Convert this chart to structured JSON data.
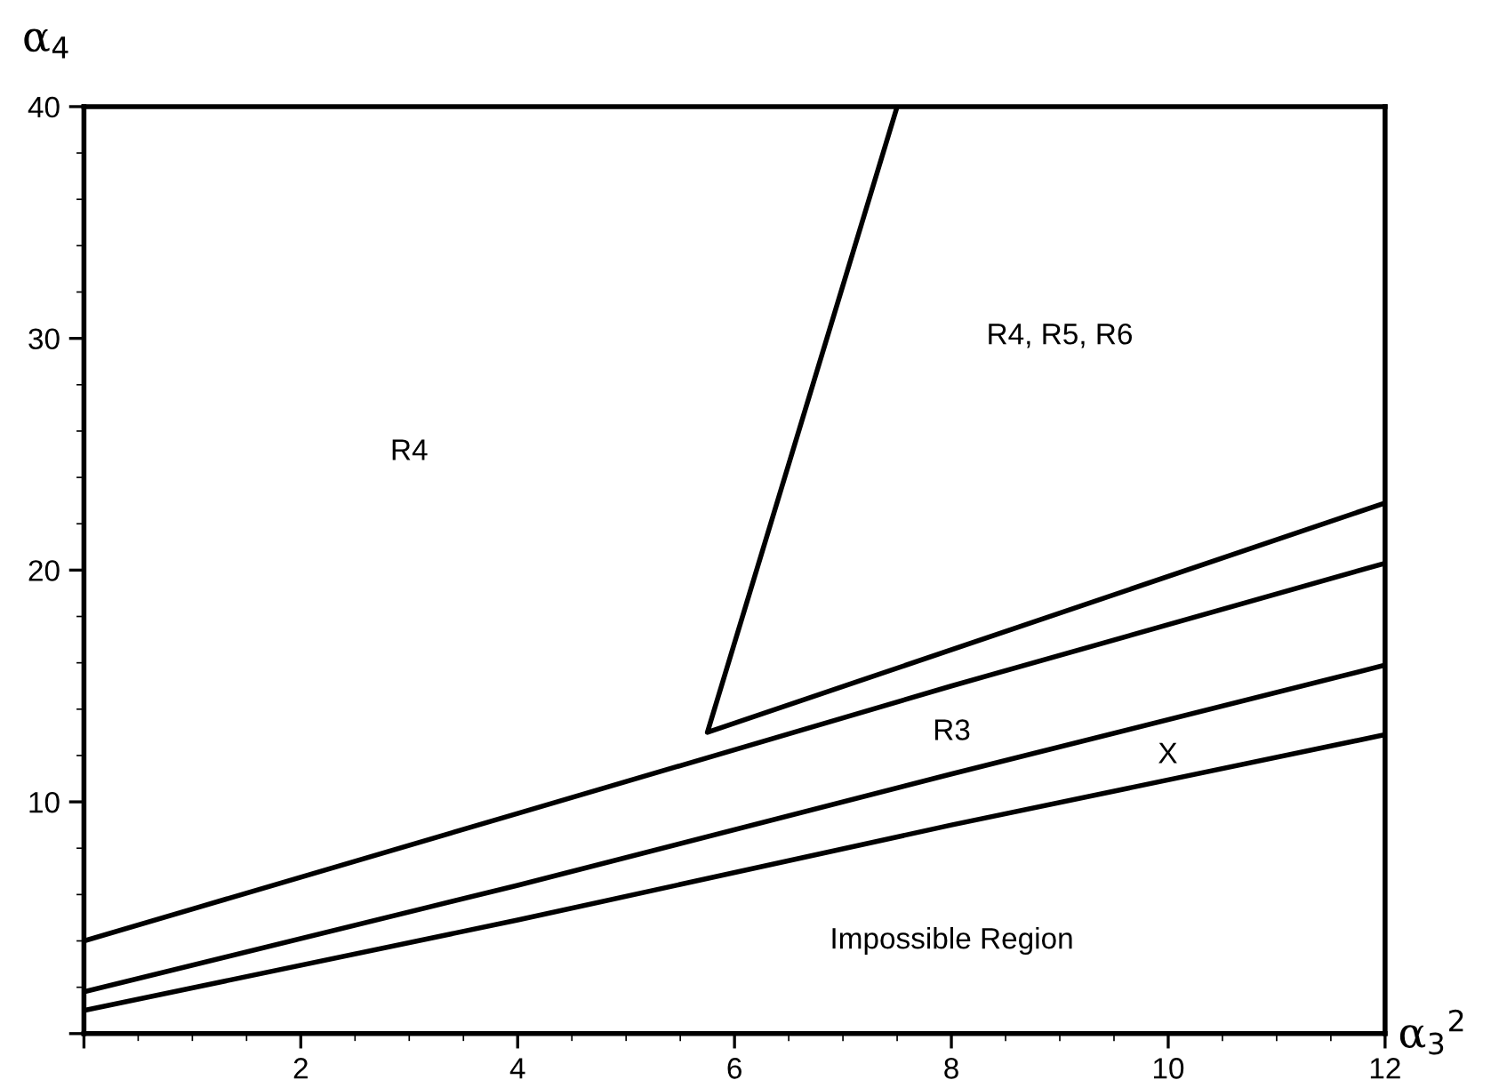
{
  "chart_data": {
    "type": "line",
    "xlabel": "α$_{3}$$^{2}$",
    "ylabel": "α$_{4}$",
    "xlim": [
      0,
      12
    ],
    "ylim": [
      0,
      40
    ],
    "xticks": [
      {
        "value": 0,
        "label": null
      },
      2,
      4,
      6,
      8,
      10,
      12
    ],
    "yticks": [
      {
        "value": 0,
        "label": null
      },
      10,
      20,
      30,
      40
    ],
    "grid": false,
    "legend": false,
    "marker": "none",
    "line_style": "solid",
    "series": [
      {
        "color": "#000000",
        "x": [
          0,
          4,
          8,
          12
        ],
        "values": [
          1.0,
          4.9,
          9.0,
          12.9
        ]
      },
      {
        "color": "#000000",
        "x": [
          0,
          4,
          8,
          12
        ],
        "values": [
          1.8,
          6.4,
          11.2,
          15.9
        ]
      },
      {
        "color": "#000000",
        "x": [
          0,
          4,
          8,
          12
        ],
        "values": [
          4.0,
          9.5,
          15.0,
          20.3
        ]
      },
      {
        "color": "#000000",
        "x": [
          7.5,
          5.75,
          12
        ],
        "values": [
          40,
          13,
          22.9
        ]
      }
    ],
    "annotations": [
      "R4",
      "R4, R5, R6",
      "R3",
      "X",
      "Impossible Region"
    ]
  }
}
